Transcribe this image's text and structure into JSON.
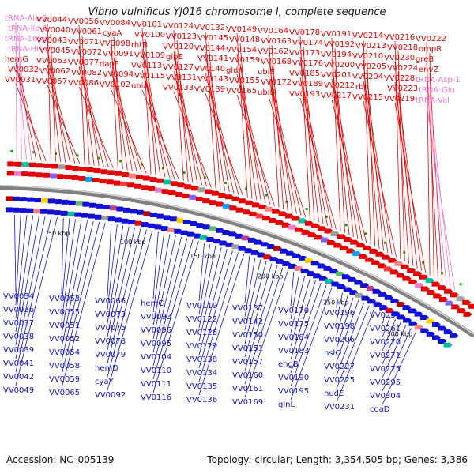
{
  "title": "Vibrio vulnificus YJ016 chromosome I, complete sequence",
  "footer": {
    "accession": "Accession: NC_005139",
    "stats": "Topology: circular; Length: 3,354,505 bp; Genes: 3,386"
  },
  "colors": {
    "forward": "#e60000",
    "reverse": "#1010d8",
    "rna": "#f07ad0",
    "backbone": "#808080"
  },
  "scale_labels": [
    "50 kbp",
    "100 kbp",
    "150 kbp",
    "200 kbp",
    "250 kbp",
    "300 kbp"
  ],
  "forward_labels": [
    "tRNA-Ala-1",
    "tRNA-Ile-1",
    "tRNA-16Sa",
    "tRNA-His-2",
    "hemG",
    "VV0032",
    "VV0031",
    "VV0044",
    "VV0040",
    "VV0043",
    "VV0045",
    "VV0063",
    "VV0062",
    "VV0057",
    "VV0056",
    "VV0061",
    "VV0071",
    "VV0072",
    "VV0077",
    "VV0082",
    "VV0086",
    "VV0084",
    "cyaA",
    "VV0098",
    "VV0091",
    "dapF",
    "VV0094",
    "VV0102",
    "VV0101",
    "VV0100",
    "rhtB",
    "VV0109",
    "VV0113",
    "VV0115",
    "ubiA",
    "VV0124",
    "VV0123",
    "VV0120",
    "glpE",
    "VV0127",
    "VV0131",
    "VV0133",
    "VV0132",
    "VV0145",
    "VV0144",
    "VV0141",
    "VV0140",
    "VV0143",
    "VV0139",
    "VV0149",
    "VV0148",
    "VV0154",
    "VV0159",
    "gldA",
    "VV0155",
    "VV0165",
    "VV0164",
    "VV0163",
    "VV0162",
    "VV0168",
    "ubiE",
    "VV0172",
    "ubiB",
    "VV0178",
    "VV0174",
    "VV0173",
    "VV0176",
    "VV0185",
    "VV0189",
    "VV0193",
    "VV0191",
    "VV0192",
    "VV0194",
    "VV0200",
    "VV0201",
    "VV0212",
    "VV0217",
    "VV0214",
    "VV0213",
    "VV0210",
    "VV0205",
    "VV0204",
    "rbn",
    "VV0215",
    "VV0216",
    "VV0218",
    "VV0230",
    "VV0224",
    "VV0228",
    "VV0223",
    "VV0219",
    "VV0222",
    "ompR",
    "greB",
    "envZ",
    "tRNA-Asp-1",
    "tRNA-Glu",
    "tRNA-Val"
  ],
  "reverse_labels": [
    "VV0034",
    "VV0036",
    "VV0037",
    "VV0038",
    "VV0039",
    "VV0041",
    "VV0042",
    "VV0049",
    "VV0053",
    "VV0055",
    "VV0051",
    "VV0052",
    "VV0054",
    "VV0058",
    "VV0059",
    "VV0065",
    "VV0066",
    "VV0073",
    "VV0075",
    "VV0078",
    "VV0079",
    "hemD",
    "cyaY",
    "VV0092",
    "hemC",
    "VV0093",
    "VV0096",
    "VV0095",
    "VV0104",
    "VV0110",
    "VV0111",
    "VV0116",
    "VV0119",
    "VV0122",
    "VV0126",
    "VV0129",
    "VV0138",
    "VV0134",
    "VV0135",
    "VV0136",
    "VV0137",
    "VV0142",
    "VV0150",
    "VV0151",
    "VV0157",
    "VV0160",
    "VV0161",
    "VV0169",
    "VV0170",
    "VV0175",
    "VV0184",
    "VV0183",
    "engB",
    "VV0190",
    "VV0195",
    "glnL",
    "VV0196",
    "VV0198",
    "VV0206",
    "hslO",
    "VV0227",
    "VV0225",
    "nudE",
    "VV0231",
    "VV0232",
    "VV0261",
    "VV0270",
    "VV0271",
    "VV0275",
    "VV0295",
    "VV0304",
    "coaD"
  ]
}
